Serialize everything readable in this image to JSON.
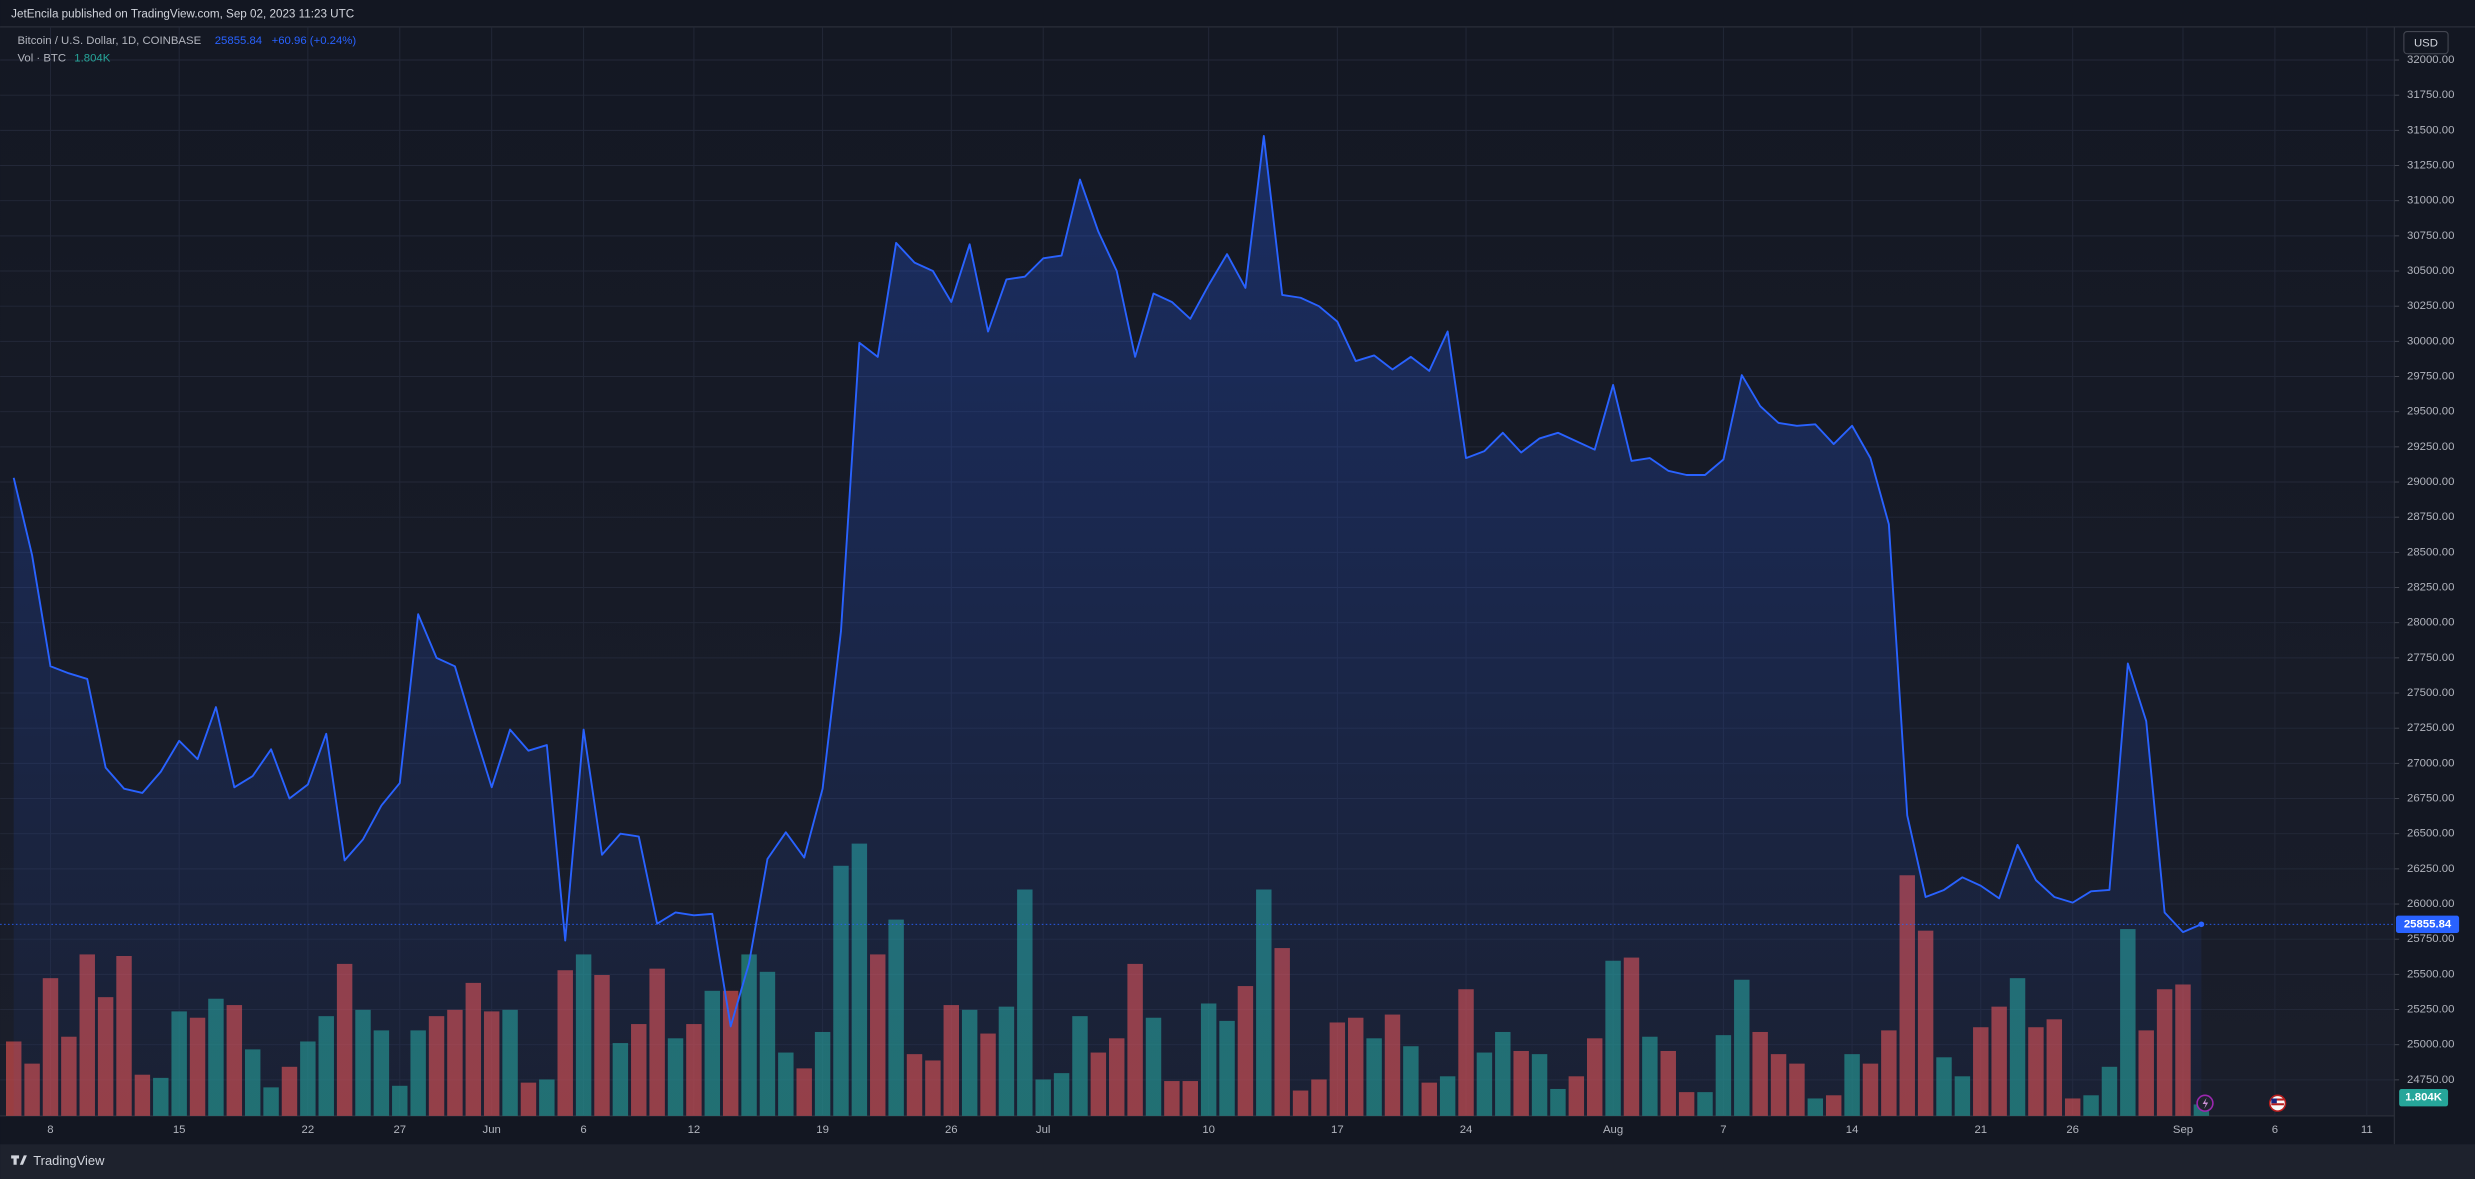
{
  "header": {
    "publisher": "JetEncila published on TradingView.com, Sep 02, 2023 11:23 UTC",
    "currency": "USD",
    "footer": "TradingView"
  },
  "chart_data": {
    "type": "area",
    "categories": [
      null,
      null,
      "8",
      null,
      null,
      null,
      null,
      null,
      null,
      "15",
      null,
      null,
      null,
      null,
      null,
      null,
      "22",
      null,
      null,
      null,
      null,
      "27",
      null,
      null,
      null,
      null,
      "Jun",
      null,
      null,
      null,
      null,
      "6",
      null,
      null,
      null,
      null,
      null,
      "12",
      null,
      null,
      null,
      null,
      null,
      null,
      "19",
      null,
      null,
      null,
      null,
      null,
      null,
      "26",
      null,
      null,
      null,
      null,
      "Jul",
      null,
      null,
      null,
      null,
      null,
      null,
      null,
      null,
      "10",
      null,
      null,
      null,
      null,
      null,
      null,
      "17",
      null,
      null,
      null,
      null,
      null,
      null,
      "24",
      null,
      null,
      null,
      null,
      null,
      null,
      null,
      "Aug",
      null,
      null,
      null,
      null,
      null,
      "7",
      null,
      null,
      null,
      null,
      null,
      null,
      "14",
      null,
      null,
      null,
      null,
      null,
      null,
      "21",
      null,
      null,
      null,
      null,
      "26",
      null,
      null,
      null,
      null,
      null,
      "Sep",
      null,
      null,
      null,
      null,
      "6",
      null,
      null,
      null,
      null,
      "11",
      null
    ],
    "series": [
      {
        "name": "Bitcoin / U.S. Dollar, 1D, COINBASE",
        "color": "#2962ff",
        "change_label": "+60.96 (+0.24%)",
        "values": [
          29030,
          28480,
          27690,
          27640,
          27600,
          26970,
          26820,
          26790,
          26940,
          27160,
          27030,
          27400,
          26830,
          26910,
          27100,
          26750,
          26850,
          27210,
          26310,
          26460,
          26700,
          26860,
          28060,
          27750,
          27690,
          27250,
          26830,
          27240,
          27090,
          27130,
          25740,
          27240,
          26350,
          26500,
          26480,
          25860,
          25940,
          25920,
          25930,
          25130,
          25580,
          26320,
          26510,
          26330,
          26820,
          27940,
          29990,
          29890,
          30700,
          30560,
          30500,
          30280,
          30690,
          30070,
          30440,
          30460,
          30590,
          30610,
          31150,
          30780,
          30500,
          29890,
          30340,
          30280,
          30160,
          30400,
          30620,
          30380,
          31460,
          30330,
          30310,
          30250,
          30140,
          29860,
          29900,
          29800,
          29890,
          29790,
          30070,
          29170,
          29220,
          29350,
          29210,
          29310,
          29350,
          29290,
          29230,
          29690,
          29150,
          29170,
          29080,
          29050,
          29050,
          29160,
          29760,
          29540,
          29420,
          29400,
          29410,
          29270,
          29400,
          29170,
          28700,
          26630,
          26050,
          26100,
          26190,
          26130,
          26040,
          26420,
          26170,
          26050,
          26010,
          26090,
          26100,
          27710,
          27300,
          25940,
          25800,
          25855.84,
          null,
          null,
          null,
          null,
          null,
          null,
          null,
          null,
          null,
          null
        ]
      },
      {
        "name": "Vol · BTC",
        "type": "bar",
        "axis": "y2",
        "up_color": "#26a69a",
        "down_color": "#ef5350",
        "last_label": "1.804K",
        "values": [
          11750,
          8250,
          21750,
          12500,
          25500,
          18750,
          25250,
          6500,
          6000,
          16500,
          15500,
          18500,
          17500,
          10500,
          4500,
          7750,
          11750,
          15750,
          24000,
          16750,
          13500,
          4750,
          13500,
          15750,
          16750,
          21000,
          16500,
          16750,
          5250,
          5750,
          23000,
          25500,
          22250,
          11500,
          14500,
          23250,
          12250,
          14500,
          19750,
          19750,
          25500,
          22750,
          10000,
          7500,
          13250,
          39500,
          43000,
          25500,
          31000,
          9750,
          8750,
          17500,
          16750,
          13000,
          17250,
          35750,
          5750,
          6750,
          15750,
          10000,
          12250,
          24000,
          15500,
          5500,
          5500,
          17750,
          15000,
          20500,
          35750,
          26500,
          4000,
          5750,
          14750,
          15500,
          12250,
          16000,
          11000,
          5250,
          6250,
          20000,
          10000,
          13250,
          10250,
          9750,
          4250,
          6250,
          12250,
          24500,
          25000,
          12500,
          10250,
          3750,
          3750,
          12750,
          21500,
          13250,
          9750,
          8250,
          2750,
          3250,
          9750,
          8250,
          13500,
          38000,
          29250,
          9250,
          6250,
          14000,
          17250,
          21750,
          14000,
          15250,
          2750,
          3250,
          7750,
          29500,
          13500,
          20000,
          20750,
          1804,
          null,
          null,
          null,
          null,
          null,
          null,
          null,
          null,
          null,
          null
        ]
      }
    ],
    "ylim": [
      24494,
      32236
    ],
    "yticks": [
      {
        "value": 24750,
        "label": "24750.00"
      },
      {
        "value": 25000,
        "label": "25000.00"
      },
      {
        "value": 25250,
        "label": "25250.00"
      },
      {
        "value": 25500,
        "label": "25500.00"
      },
      {
        "value": 25750,
        "label": "25750.00"
      },
      {
        "value": 26000,
        "label": "26000.00"
      },
      {
        "value": 26250,
        "label": "26250.00"
      },
      {
        "value": 26500,
        "label": "26500.00"
      },
      {
        "value": 26750,
        "label": "26750.00"
      },
      {
        "value": 27000,
        "label": "27000.00"
      },
      {
        "value": 27250,
        "label": "27250.00"
      },
      {
        "value": 27500,
        "label": "27500.00"
      },
      {
        "value": 27750,
        "label": "27750.00"
      },
      {
        "value": 28000,
        "label": "28000.00"
      },
      {
        "value": 28250,
        "label": "28250.00"
      },
      {
        "value": 28500,
        "label": "28500.00"
      },
      {
        "value": 28750,
        "label": "28750.00"
      },
      {
        "value": 29000,
        "label": "29000.00"
      },
      {
        "value": 29250,
        "label": "29250.00"
      },
      {
        "value": 29500,
        "label": "29500.00"
      },
      {
        "value": 29750,
        "label": "29750.00"
      },
      {
        "value": 30000,
        "label": "30000.00"
      },
      {
        "value": 30250,
        "label": "30250.00"
      },
      {
        "value": 30500,
        "label": "30500.00"
      },
      {
        "value": 30750,
        "label": "30750.00"
      },
      {
        "value": 31000,
        "label": "31000.00"
      },
      {
        "value": 31250,
        "label": "31250.00"
      },
      {
        "value": 31500,
        "label": "31500.00"
      },
      {
        "value": 31750,
        "label": "31750.00"
      },
      {
        "value": 32000,
        "label": "32000.00"
      }
    ],
    "y2lim": [
      0,
      172000
    ],
    "grid": true
  }
}
